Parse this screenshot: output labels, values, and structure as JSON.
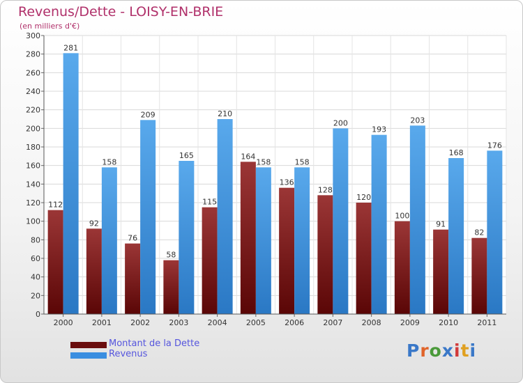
{
  "chart_data": {
    "type": "bar",
    "title": "Revenus/Dette - LOISY-EN-BRIE",
    "subtitle": "(en milliers d'€)",
    "categories": [
      "2000",
      "2001",
      "2002",
      "2003",
      "2004",
      "2005",
      "2006",
      "2007",
      "2008",
      "2009",
      "2010",
      "2011"
    ],
    "series": [
      {
        "name": "Montant de la Dette",
        "color": "#7a1a1a",
        "values": [
          112,
          92,
          76,
          58,
          115,
          164,
          136,
          128,
          120,
          100,
          91,
          82
        ]
      },
      {
        "name": "Revenus",
        "color": "#3f8fdc",
        "values": [
          281,
          158,
          209,
          165,
          210,
          158,
          158,
          200,
          193,
          203,
          168,
          176
        ]
      }
    ],
    "ylim": [
      0,
      300
    ],
    "yticks": [
      0,
      20,
      40,
      60,
      80,
      100,
      120,
      140,
      160,
      180,
      200,
      220,
      240,
      260,
      280,
      300
    ],
    "grid": true,
    "legend_position": "bottom-left"
  },
  "logo": {
    "text": "Proxiti",
    "colors": [
      "#3a78c8",
      "#e0642a",
      "#4a9a3a",
      "#3a78c8",
      "#d23a3a",
      "#e0a020",
      "#3a78c8"
    ]
  }
}
